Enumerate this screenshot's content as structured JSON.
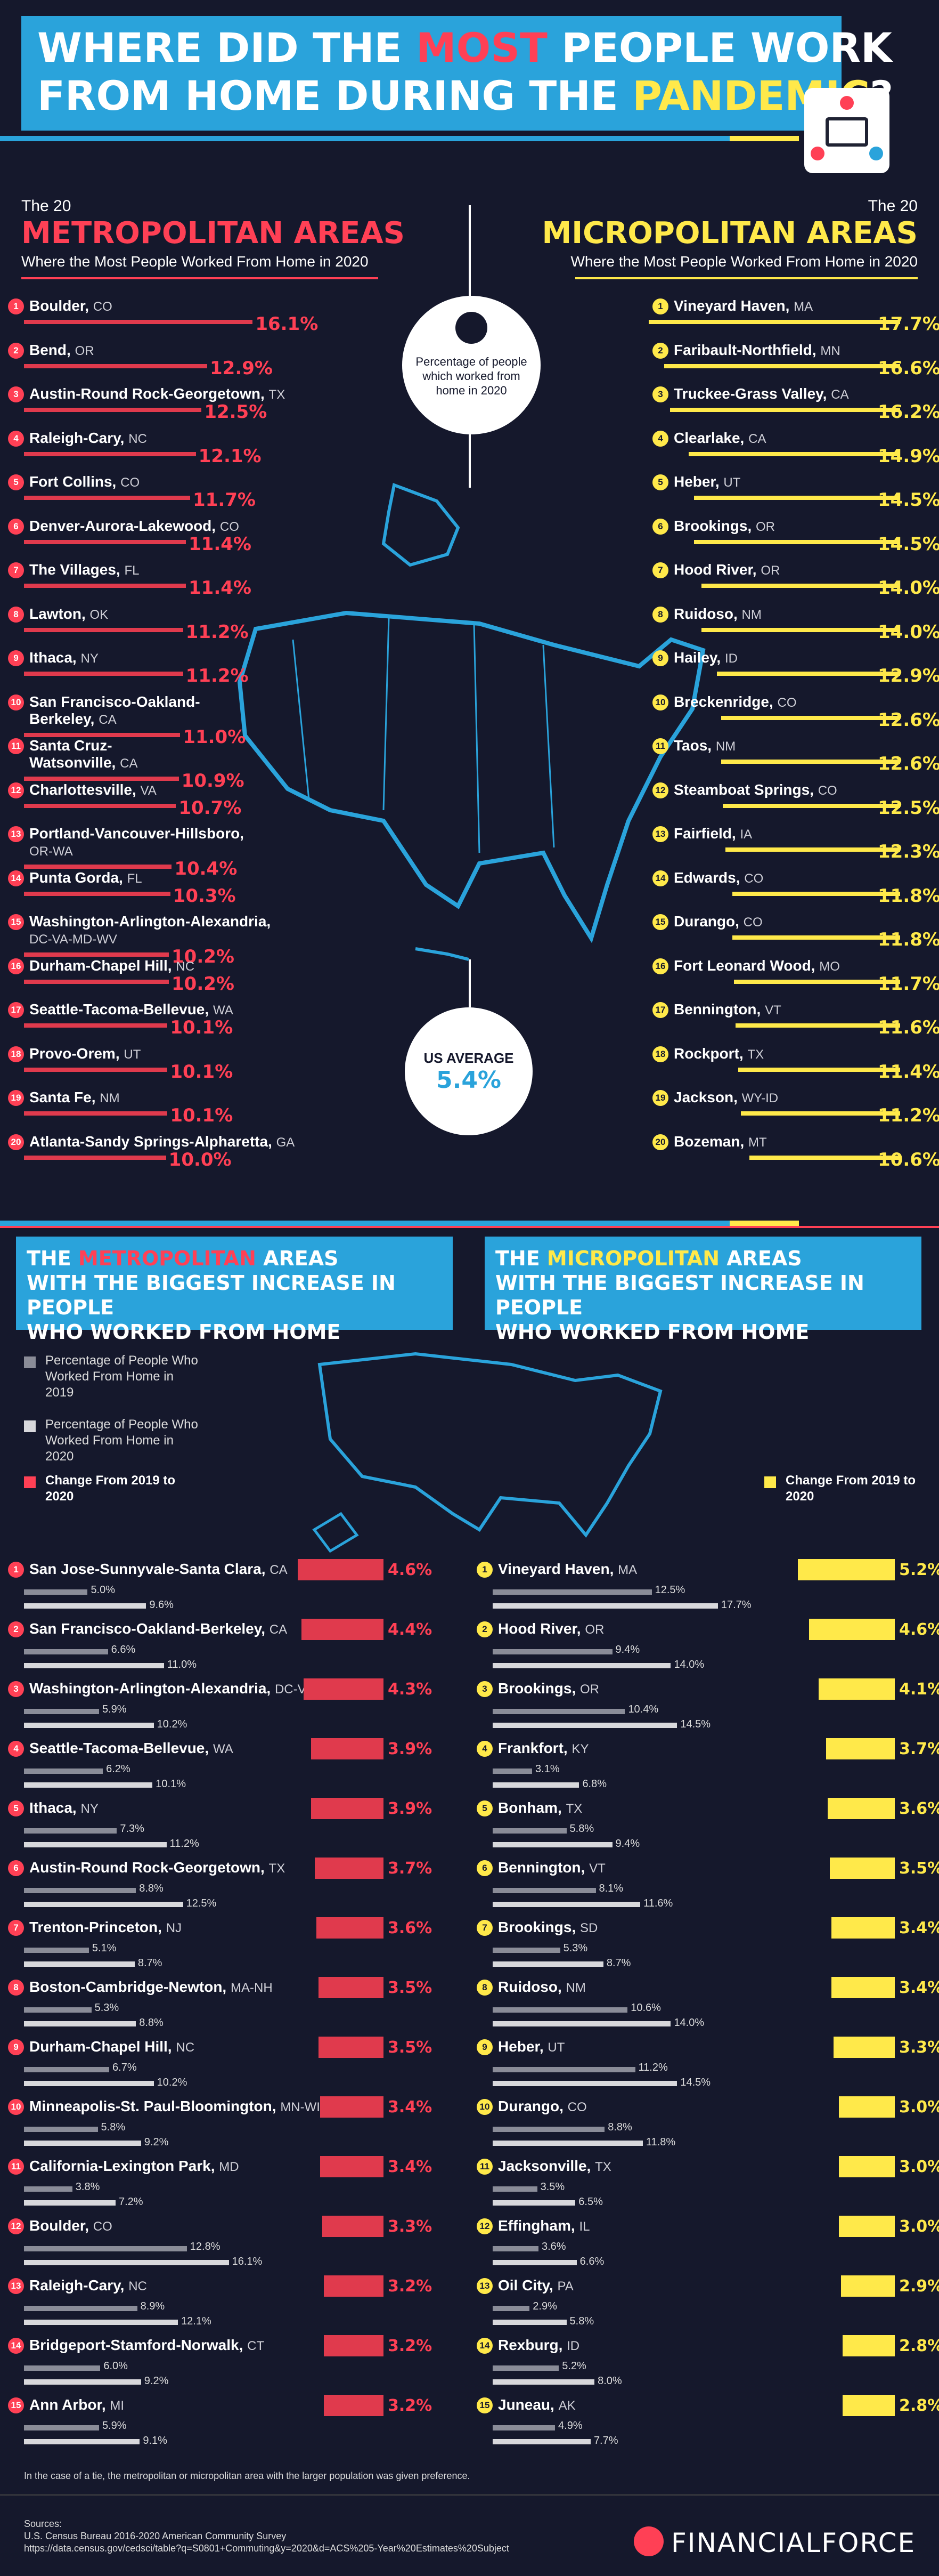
{
  "header": {
    "title_line1_a": "WHERE DID THE ",
    "title_line1_b": "MOST",
    "title_line1_c": " PEOPLE WORK",
    "title_line2_a": "FROM HOME DURING THE ",
    "title_line2_b": "PANDEMIC",
    "title_line2_c": "?"
  },
  "metro": {
    "kicker": "The 20",
    "heading": "METROPOLITAN AREAS",
    "subheading": "Where the Most People Worked From Home in 2020"
  },
  "micro": {
    "kicker": "The 20",
    "heading": "MICROPOLITAN AREAS",
    "subheading": "Where the Most People Worked From Home in 2020"
  },
  "map_circle_text": "Percentage of people which worked from home in 2020",
  "us_average": {
    "label": "US AVERAGE",
    "value": "5.4%"
  },
  "section2": {
    "metro_title_a": "THE ",
    "metro_title_b": "METROPOLITAN",
    "metro_title_c": " AREAS",
    "metro_title_line2": "WITH THE BIGGEST INCREASE IN PEOPLE",
    "metro_title_line3": "WHO WORKED FROM HOME",
    "micro_title_a": "THE ",
    "micro_title_b": "MICROPOLITAN",
    "micro_title_c": " AREAS",
    "micro_title_line2": "WITH THE BIGGEST INCREASE IN PEOPLE",
    "micro_title_line3": "WHO WORKED FROM HOME",
    "legend_2019": "Percentage of People Who Worked From Home in 2019",
    "legend_2020": "Percentage of People Who Worked From Home in 2020",
    "legend_change": "Change From 2019 to 2020",
    "legend_change_micro": "Change From 2019 to 2020"
  },
  "footnote": "In the case of a tie, the metropolitan or micropolitan area with the larger population was given preference.",
  "sources": {
    "label": "Sources:",
    "line1": "U.S. Census Bureau 2016-2020 American Community Survey",
    "line2": "https://data.census.gov/cedsci/table?q=S0801+Commuting&y=2020&d=ACS%205-Year%20Estimates%20Subject"
  },
  "brand": "FINANCIALFORCE",
  "colors": {
    "metro": "#e03a4d",
    "micro": "#ffe94a",
    "blue": "#2aa3db",
    "bg": "#15182c"
  },
  "chart_data": [
    {
      "type": "bar",
      "title": "The 20 Metropolitan Areas Where the Most People Worked From Home in 2020",
      "categories": [
        {
          "n": "1",
          "city": "Boulder,",
          "state": "CO"
        },
        {
          "n": "2",
          "city": "Bend,",
          "state": "OR"
        },
        {
          "n": "3",
          "city": "Austin-Round Rock-Georgetown,",
          "state": "TX"
        },
        {
          "n": "4",
          "city": "Raleigh-Cary,",
          "state": "NC"
        },
        {
          "n": "5",
          "city": "Fort Collins,",
          "state": "CO"
        },
        {
          "n": "6",
          "city": "Denver-Aurora-Lakewood,",
          "state": "CO"
        },
        {
          "n": "7",
          "city": "The Villages,",
          "state": "FL"
        },
        {
          "n": "8",
          "city": "Lawton,",
          "state": "OK"
        },
        {
          "n": "9",
          "city": "Ithaca,",
          "state": "NY"
        },
        {
          "n": "10",
          "city": "San Francisco-Oakland-",
          "city2": "Berkeley,",
          "state": "CA"
        },
        {
          "n": "11",
          "city": "Santa Cruz-",
          "city2": "Watsonville,",
          "state": "CA"
        },
        {
          "n": "12",
          "city": "Charlottesville,",
          "state": "VA"
        },
        {
          "n": "13",
          "city": "Portland-Vancouver-Hillsboro,",
          "city2": "",
          "state": "OR-WA"
        },
        {
          "n": "14",
          "city": "Punta Gorda,",
          "state": "FL"
        },
        {
          "n": "15",
          "city": "Washington-Arlington-Alexandria,",
          "city2": "",
          "state": "DC-VA-MD-WV"
        },
        {
          "n": "16",
          "city": "Durham-Chapel Hill,",
          "state": "NC"
        },
        {
          "n": "17",
          "city": "Seattle-Tacoma-Bellevue,",
          "state": "WA"
        },
        {
          "n": "18",
          "city": "Provo-Orem,",
          "state": "UT"
        },
        {
          "n": "19",
          "city": "Santa Fe,",
          "state": "NM"
        },
        {
          "n": "20",
          "city": "Atlanta-Sandy Springs-Alpharetta,",
          "state": "GA"
        }
      ],
      "values": [
        16.1,
        12.9,
        12.5,
        12.1,
        11.7,
        11.4,
        11.4,
        11.2,
        11.2,
        11.0,
        10.9,
        10.7,
        10.4,
        10.3,
        10.2,
        10.2,
        10.1,
        10.1,
        10.1,
        10.0
      ],
      "labels": [
        "16.1%",
        "12.9%",
        "12.5%",
        "12.1%",
        "11.7%",
        "11.4%",
        "11.4%",
        "11.2%",
        "11.2%",
        "11.0%",
        "10.9%",
        "10.7%",
        "10.4%",
        "10.3%",
        "10.2%",
        "10.2%",
        "10.1%",
        "10.1%",
        "10.1%",
        "10.0%"
      ]
    },
    {
      "type": "bar",
      "title": "The 20 Micropolitan Areas Where the Most People Worked From Home in 2020",
      "categories": [
        {
          "n": "1",
          "city": "Vineyard Haven,",
          "state": "MA"
        },
        {
          "n": "2",
          "city": "Faribault-Northfield,",
          "state": "MN"
        },
        {
          "n": "3",
          "city": "Truckee-Grass Valley,",
          "state": "CA"
        },
        {
          "n": "4",
          "city": "Clearlake,",
          "state": "CA"
        },
        {
          "n": "5",
          "city": "Heber,",
          "state": "UT"
        },
        {
          "n": "6",
          "city": "Brookings,",
          "state": "OR"
        },
        {
          "n": "7",
          "city": "Hood River,",
          "state": "OR"
        },
        {
          "n": "8",
          "city": "Ruidoso,",
          "state": "NM"
        },
        {
          "n": "9",
          "city": "Hailey,",
          "state": "ID"
        },
        {
          "n": "10",
          "city": "Breckenridge,",
          "state": "CO"
        },
        {
          "n": "11",
          "city": "Taos,",
          "state": "NM"
        },
        {
          "n": "12",
          "city": "Steamboat Springs,",
          "state": "CO"
        },
        {
          "n": "13",
          "city": "Fairfield,",
          "state": "IA"
        },
        {
          "n": "14",
          "city": "Edwards,",
          "state": "CO"
        },
        {
          "n": "15",
          "city": "Durango,",
          "state": "CO"
        },
        {
          "n": "16",
          "city": "Fort Leonard Wood,",
          "state": "MO"
        },
        {
          "n": "17",
          "city": "Bennington,",
          "state": "VT"
        },
        {
          "n": "18",
          "city": "Rockport,",
          "state": "TX"
        },
        {
          "n": "19",
          "city": "Jackson,",
          "state": "WY-ID"
        },
        {
          "n": "20",
          "city": "Bozeman,",
          "state": "MT"
        }
      ],
      "values": [
        17.7,
        16.6,
        16.2,
        14.9,
        14.5,
        14.5,
        14.0,
        14.0,
        12.9,
        12.6,
        12.6,
        12.5,
        12.3,
        11.8,
        11.8,
        11.7,
        11.6,
        11.4,
        11.2,
        10.6
      ],
      "labels": [
        "17.7%",
        "16.6%",
        "16.2%",
        "14.9%",
        "14.5%",
        "14.5%",
        "14.0%",
        "14.0%",
        "12.9%",
        "12.6%",
        "12.6%",
        "12.5%",
        "12.3%",
        "11.8%",
        "11.8%",
        "11.7%",
        "11.6%",
        "11.4%",
        "11.2%",
        "10.6%"
      ]
    },
    {
      "type": "bar",
      "title": "The Metropolitan Areas With the Biggest Increase in People Who Worked From Home",
      "categories": [
        {
          "n": "1",
          "city": "San Jose-Sunnyvale-Santa Clara,",
          "state": "CA"
        },
        {
          "n": "2",
          "city": "San Francisco-Oakland-Berkeley,",
          "state": "CA"
        },
        {
          "n": "3",
          "city": "Washington-Arlington-Alexandria,",
          "state": "DC-VA-MD-WV"
        },
        {
          "n": "4",
          "city": "Seattle-Tacoma-Bellevue,",
          "state": "WA"
        },
        {
          "n": "5",
          "city": "Ithaca,",
          "state": "NY"
        },
        {
          "n": "6",
          "city": "Austin-Round Rock-Georgetown,",
          "state": "TX"
        },
        {
          "n": "7",
          "city": "Trenton-Princeton,",
          "state": "NJ"
        },
        {
          "n": "8",
          "city": "Boston-Cambridge-Newton,",
          "state": "MA-NH"
        },
        {
          "n": "9",
          "city": "Durham-Chapel Hill,",
          "state": "NC"
        },
        {
          "n": "10",
          "city": "Minneapolis-St. Paul-Bloomington,",
          "state": "MN-WI"
        },
        {
          "n": "11",
          "city": "California-Lexington Park,",
          "state": "MD"
        },
        {
          "n": "12",
          "city": "Boulder,",
          "state": "CO"
        },
        {
          "n": "13",
          "city": "Raleigh-Cary,",
          "state": "NC"
        },
        {
          "n": "14",
          "city": "Bridgeport-Stamford-Norwalk,",
          "state": "CT"
        },
        {
          "n": "15",
          "city": "Ann Arbor,",
          "state": "MI"
        }
      ],
      "series": [
        {
          "name": "Percentage of People Who Worked From Home in 2019",
          "values": [
            5.0,
            6.6,
            5.9,
            6.2,
            7.3,
            8.8,
            5.1,
            5.3,
            6.7,
            5.8,
            3.8,
            12.8,
            8.9,
            6.0,
            5.9
          ],
          "labels": [
            "5.0%",
            "6.6%",
            "5.9%",
            "6.2%",
            "7.3%",
            "8.8%",
            "5.1%",
            "5.3%",
            "6.7%",
            "5.8%",
            "3.8%",
            "12.8%",
            "8.9%",
            "6.0%",
            "5.9%"
          ]
        },
        {
          "name": "Percentage of People Who Worked From Home in 2020",
          "values": [
            9.6,
            11.0,
            10.2,
            10.1,
            11.2,
            12.5,
            8.7,
            8.8,
            10.2,
            9.2,
            7.2,
            16.1,
            12.1,
            9.2,
            9.1
          ],
          "labels": [
            "9.6%",
            "11.0%",
            "10.2%",
            "10.1%",
            "11.2%",
            "12.5%",
            "8.7%",
            "8.8%",
            "10.2%",
            "9.2%",
            "7.2%",
            "16.1%",
            "12.1%",
            "9.2%",
            "9.1%"
          ]
        },
        {
          "name": "Change From 2019 to 2020",
          "values": [
            4.6,
            4.4,
            4.3,
            3.9,
            3.9,
            3.7,
            3.6,
            3.5,
            3.5,
            3.4,
            3.4,
            3.3,
            3.2,
            3.2,
            3.2
          ],
          "labels": [
            "4.6%",
            "4.4%",
            "4.3%",
            "3.9%",
            "3.9%",
            "3.7%",
            "3.6%",
            "3.5%",
            "3.5%",
            "3.4%",
            "3.4%",
            "3.3%",
            "3.2%",
            "3.2%",
            "3.2%"
          ]
        }
      ]
    },
    {
      "type": "bar",
      "title": "The Micropolitan Areas With the Biggest Increase in People Who Worked From Home",
      "categories": [
        {
          "n": "1",
          "city": "Vineyard Haven,",
          "state": "MA"
        },
        {
          "n": "2",
          "city": "Hood River,",
          "state": "OR"
        },
        {
          "n": "3",
          "city": "Brookings,",
          "state": "OR"
        },
        {
          "n": "4",
          "city": "Frankfort,",
          "state": "KY"
        },
        {
          "n": "5",
          "city": "Bonham,",
          "state": "TX"
        },
        {
          "n": "6",
          "city": "Bennington,",
          "state": "VT"
        },
        {
          "n": "7",
          "city": "Brookings,",
          "state": "SD"
        },
        {
          "n": "8",
          "city": "Ruidoso,",
          "state": "NM"
        },
        {
          "n": "9",
          "city": "Heber,",
          "state": "UT"
        },
        {
          "n": "10",
          "city": "Durango,",
          "state": "CO"
        },
        {
          "n": "11",
          "city": "Jacksonville,",
          "state": "TX"
        },
        {
          "n": "12",
          "city": "Effingham,",
          "state": "IL"
        },
        {
          "n": "13",
          "city": "Oil City,",
          "state": "PA"
        },
        {
          "n": "14",
          "city": "Rexburg,",
          "state": "ID"
        },
        {
          "n": "15",
          "city": "Juneau,",
          "state": "AK"
        }
      ],
      "series": [
        {
          "name": "Percentage of People Who Worked From Home in 2019",
          "values": [
            12.5,
            9.4,
            10.4,
            3.1,
            5.8,
            8.1,
            5.3,
            10.6,
            11.2,
            8.8,
            3.5,
            3.6,
            2.9,
            5.2,
            4.9
          ],
          "labels": [
            "12.5%",
            "9.4%",
            "10.4%",
            "3.1%",
            "5.8%",
            "8.1%",
            "5.3%",
            "10.6%",
            "11.2%",
            "8.8%",
            "3.5%",
            "3.6%",
            "2.9%",
            "5.2%",
            "4.9%"
          ]
        },
        {
          "name": "Percentage of People Who Worked From Home in 2020",
          "values": [
            17.7,
            14.0,
            14.5,
            6.8,
            9.4,
            11.6,
            8.7,
            14.0,
            14.5,
            11.8,
            6.5,
            6.6,
            5.8,
            8.0,
            7.7
          ],
          "labels": [
            "17.7%",
            "14.0%",
            "14.5%",
            "6.8%",
            "9.4%",
            "11.6%",
            "8.7%",
            "14.0%",
            "14.5%",
            "11.8%",
            "6.5%",
            "6.6%",
            "5.8%",
            "8.0%",
            "7.7%"
          ]
        },
        {
          "name": "Change From 2019 to 2020",
          "values": [
            5.2,
            4.6,
            4.1,
            3.7,
            3.6,
            3.5,
            3.4,
            3.4,
            3.3,
            3.0,
            3.0,
            3.0,
            2.9,
            2.8,
            2.8
          ],
          "labels": [
            "5.2%",
            "4.6%",
            "4.1%",
            "3.7%",
            "3.6%",
            "3.5%",
            "3.4%",
            "3.4%",
            "3.3%",
            "3.0%",
            "3.0%",
            "3.0%",
            "2.9%",
            "2.8%",
            "2.8%"
          ]
        }
      ]
    }
  ]
}
